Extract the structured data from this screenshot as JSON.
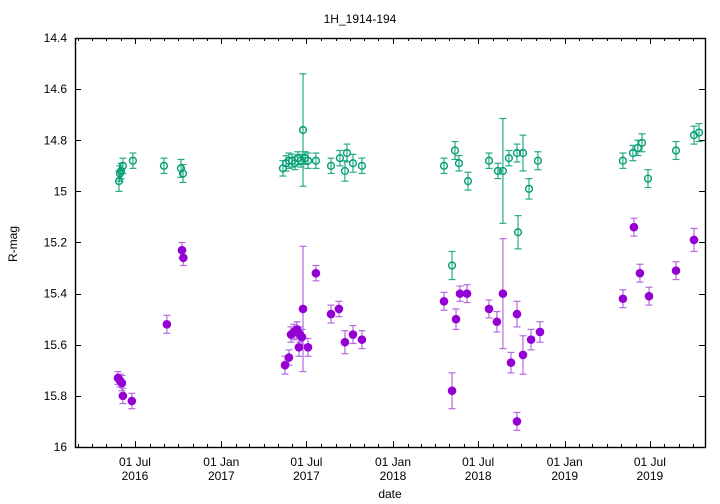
{
  "window": {
    "background": "#ffffff"
  },
  "chart_data": {
    "type": "scatter",
    "title": "1H_1914-194",
    "xlabel": "date",
    "ylabel": "R-mag",
    "grid": false,
    "legend": "none",
    "y_axis": {
      "min": 14.4,
      "max": 16.0,
      "inverted": true,
      "ticks": [
        {
          "value": 14.4,
          "label": "14.4"
        },
        {
          "value": 14.6,
          "label": "14.6"
        },
        {
          "value": 14.8,
          "label": "14.8"
        },
        {
          "value": 15.0,
          "label": "15"
        },
        {
          "value": 15.2,
          "label": "15.2"
        },
        {
          "value": 15.4,
          "label": "15.4"
        },
        {
          "value": 15.6,
          "label": "15.6"
        },
        {
          "value": 15.8,
          "label": "15.8"
        },
        {
          "value": 16.0,
          "label": "16"
        }
      ]
    },
    "x_axis": {
      "min_year": 2016.148,
      "max_year": 2019.817,
      "minor_tick_interval": "month",
      "major_ticks": [
        {
          "year": 2016,
          "month": 7,
          "day": 1,
          "line1": "01 Jul",
          "line2": "2016"
        },
        {
          "year": 2017,
          "month": 1,
          "day": 1,
          "line1": "01 Jan",
          "line2": "2017"
        },
        {
          "year": 2017,
          "month": 7,
          "day": 1,
          "line1": "01 Jul",
          "line2": "2017"
        },
        {
          "year": 2018,
          "month": 1,
          "day": 1,
          "line1": "01 Jan",
          "line2": "2018"
        },
        {
          "year": 2018,
          "month": 7,
          "day": 1,
          "line1": "01 Jul",
          "line2": "2018"
        },
        {
          "year": 2019,
          "month": 1,
          "day": 1,
          "line1": "01 Jan",
          "line2": "2019"
        },
        {
          "year": 2019,
          "month": 7,
          "day": 1,
          "line1": "01 Jul",
          "line2": "2019"
        }
      ]
    },
    "series": [
      {
        "name": "green-open-circles",
        "marker": "open-circle",
        "color": "#009e73",
        "errbar_color": "#27ab85",
        "points": [
          {
            "t": 2016.404,
            "mag": 14.96,
            "err": 0.04
          },
          {
            "t": 2016.41,
            "mag": 14.93,
            "err": 0.03
          },
          {
            "t": 2016.416,
            "mag": 14.92,
            "err": 0.03
          },
          {
            "t": 2016.427,
            "mag": 14.9,
            "err": 0.03
          },
          {
            "t": 2016.485,
            "mag": 14.88,
            "err": 0.03
          },
          {
            "t": 2016.666,
            "mag": 14.9,
            "err": 0.03
          },
          {
            "t": 2016.765,
            "mag": 14.91,
            "err": 0.035
          },
          {
            "t": 2016.777,
            "mag": 14.93,
            "err": 0.035
          },
          {
            "t": 2017.359,
            "mag": 14.91,
            "err": 0.03
          },
          {
            "t": 2017.377,
            "mag": 14.89,
            "err": 0.03
          },
          {
            "t": 2017.394,
            "mag": 14.88,
            "err": 0.03
          },
          {
            "t": 2017.412,
            "mag": 14.88,
            "err": 0.025
          },
          {
            "t": 2017.429,
            "mag": 14.89,
            "err": 0.025
          },
          {
            "t": 2017.446,
            "mag": 14.87,
            "err": 0.025
          },
          {
            "t": 2017.464,
            "mag": 14.88,
            "err": 0.025
          },
          {
            "t": 2017.476,
            "mag": 14.76,
            "err": 0.22
          },
          {
            "t": 2017.487,
            "mag": 14.87,
            "err": 0.025
          },
          {
            "t": 2017.505,
            "mag": 14.88,
            "err": 0.03
          },
          {
            "t": 2017.551,
            "mag": 14.88,
            "err": 0.03
          },
          {
            "t": 2017.639,
            "mag": 14.9,
            "err": 0.03
          },
          {
            "t": 2017.691,
            "mag": 14.87,
            "err": 0.03
          },
          {
            "t": 2017.72,
            "mag": 14.92,
            "err": 0.04
          },
          {
            "t": 2017.732,
            "mag": 14.85,
            "err": 0.035
          },
          {
            "t": 2017.767,
            "mag": 14.89,
            "err": 0.035
          },
          {
            "t": 2017.819,
            "mag": 14.9,
            "err": 0.03
          },
          {
            "t": 2018.297,
            "mag": 14.9,
            "err": 0.03
          },
          {
            "t": 2018.344,
            "mag": 15.29,
            "err": 0.055
          },
          {
            "t": 2018.361,
            "mag": 14.84,
            "err": 0.035
          },
          {
            "t": 2018.384,
            "mag": 14.89,
            "err": 0.03
          },
          {
            "t": 2018.437,
            "mag": 14.96,
            "err": 0.035
          },
          {
            "t": 2018.559,
            "mag": 14.88,
            "err": 0.03
          },
          {
            "t": 2018.611,
            "mag": 14.92,
            "err": 0.03
          },
          {
            "t": 2018.64,
            "mag": 14.92,
            "err": 0.205
          },
          {
            "t": 2018.675,
            "mag": 14.87,
            "err": 0.03
          },
          {
            "t": 2018.722,
            "mag": 14.85,
            "err": 0.035
          },
          {
            "t": 2018.728,
            "mag": 15.16,
            "err": 0.065
          },
          {
            "t": 2018.757,
            "mag": 14.85,
            "err": 0.07
          },
          {
            "t": 2018.792,
            "mag": 14.99,
            "err": 0.04
          },
          {
            "t": 2018.844,
            "mag": 14.88,
            "err": 0.035
          },
          {
            "t": 2019.339,
            "mag": 14.88,
            "err": 0.03
          },
          {
            "t": 2019.397,
            "mag": 14.85,
            "err": 0.03
          },
          {
            "t": 2019.426,
            "mag": 14.83,
            "err": 0.03
          },
          {
            "t": 2019.45,
            "mag": 14.81,
            "err": 0.035
          },
          {
            "t": 2019.485,
            "mag": 14.95,
            "err": 0.035
          },
          {
            "t": 2019.648,
            "mag": 14.84,
            "err": 0.035
          },
          {
            "t": 2019.753,
            "mag": 14.78,
            "err": 0.035
          },
          {
            "t": 2019.782,
            "mag": 14.77,
            "err": 0.035
          }
        ]
      },
      {
        "name": "purple-filled-circles",
        "marker": "filled-circle",
        "color": "#9400d3",
        "errbar_color": "#b46be0",
        "points": [
          {
            "t": 2016.398,
            "mag": 15.73,
            "err": 0.025
          },
          {
            "t": 2016.41,
            "mag": 15.74,
            "err": 0.025
          },
          {
            "t": 2016.421,
            "mag": 15.75,
            "err": 0.03
          },
          {
            "t": 2016.427,
            "mag": 15.8,
            "err": 0.03
          },
          {
            "t": 2016.479,
            "mag": 15.82,
            "err": 0.03
          },
          {
            "t": 2016.683,
            "mag": 15.52,
            "err": 0.035
          },
          {
            "t": 2016.771,
            "mag": 15.23,
            "err": 0.03
          },
          {
            "t": 2016.779,
            "mag": 15.26,
            "err": 0.03
          },
          {
            "t": 2017.371,
            "mag": 15.68,
            "err": 0.035
          },
          {
            "t": 2017.394,
            "mag": 15.65,
            "err": 0.03
          },
          {
            "t": 2017.406,
            "mag": 15.56,
            "err": 0.03
          },
          {
            "t": 2017.423,
            "mag": 15.55,
            "err": 0.03
          },
          {
            "t": 2017.441,
            "mag": 15.54,
            "err": 0.03
          },
          {
            "t": 2017.452,
            "mag": 15.61,
            "err": 0.035
          },
          {
            "t": 2017.458,
            "mag": 15.56,
            "err": 0.03
          },
          {
            "t": 2017.47,
            "mag": 15.57,
            "err": 0.03
          },
          {
            "t": 2017.476,
            "mag": 15.46,
            "err": 0.245
          },
          {
            "t": 2017.505,
            "mag": 15.61,
            "err": 0.035
          },
          {
            "t": 2017.551,
            "mag": 15.32,
            "err": 0.03
          },
          {
            "t": 2017.639,
            "mag": 15.48,
            "err": 0.035
          },
          {
            "t": 2017.685,
            "mag": 15.46,
            "err": 0.03
          },
          {
            "t": 2017.72,
            "mag": 15.59,
            "err": 0.045
          },
          {
            "t": 2017.767,
            "mag": 15.56,
            "err": 0.035
          },
          {
            "t": 2017.819,
            "mag": 15.58,
            "err": 0.035
          },
          {
            "t": 2018.297,
            "mag": 15.43,
            "err": 0.035
          },
          {
            "t": 2018.344,
            "mag": 15.78,
            "err": 0.07
          },
          {
            "t": 2018.367,
            "mag": 15.5,
            "err": 0.04
          },
          {
            "t": 2018.39,
            "mag": 15.4,
            "err": 0.03
          },
          {
            "t": 2018.431,
            "mag": 15.4,
            "err": 0.035
          },
          {
            "t": 2018.559,
            "mag": 15.46,
            "err": 0.035
          },
          {
            "t": 2018.605,
            "mag": 15.51,
            "err": 0.04
          },
          {
            "t": 2018.64,
            "mag": 15.4,
            "err": 0.215
          },
          {
            "t": 2018.687,
            "mag": 15.67,
            "err": 0.04
          },
          {
            "t": 2018.722,
            "mag": 15.48,
            "err": 0.05
          },
          {
            "t": 2018.722,
            "mag": 15.9,
            "err": 0.035
          },
          {
            "t": 2018.757,
            "mag": 15.64,
            "err": 0.075
          },
          {
            "t": 2018.804,
            "mag": 15.58,
            "err": 0.04
          },
          {
            "t": 2018.856,
            "mag": 15.55,
            "err": 0.04
          },
          {
            "t": 2019.339,
            "mag": 15.42,
            "err": 0.035
          },
          {
            "t": 2019.403,
            "mag": 15.14,
            "err": 0.035
          },
          {
            "t": 2019.438,
            "mag": 15.32,
            "err": 0.035
          },
          {
            "t": 2019.491,
            "mag": 15.41,
            "err": 0.035
          },
          {
            "t": 2019.648,
            "mag": 15.31,
            "err": 0.035
          },
          {
            "t": 2019.753,
            "mag": 15.19,
            "err": 0.045
          }
        ]
      }
    ]
  }
}
